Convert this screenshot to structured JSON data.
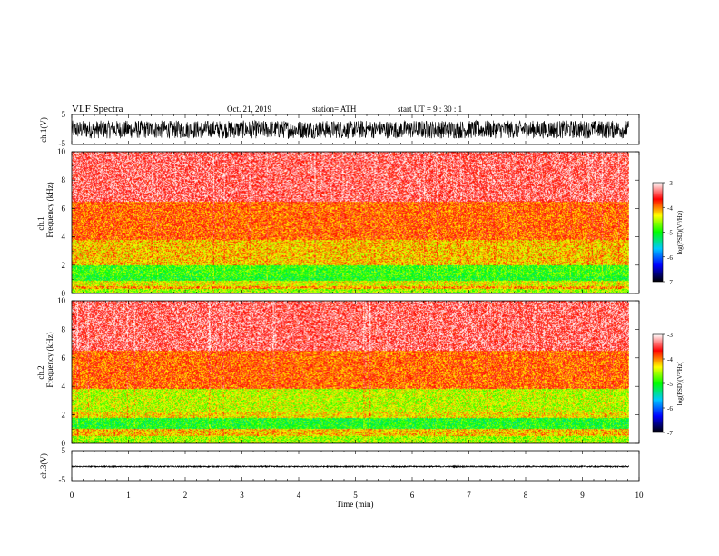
{
  "header": {
    "title": "VLF  Spectra",
    "date": "Oct. 21, 2019",
    "station": "station= ATH",
    "start": "start  UT  =    9  : 30 : 1"
  },
  "chart_data": [
    {
      "type": "line",
      "panel": "ch1-waveform",
      "ylabel": "ch.1(V)",
      "ylim": [
        -5,
        5
      ],
      "yticks": [
        "5",
        "-5"
      ],
      "description_values": {
        "amplitude_min": -3.0,
        "amplitude_max": 3.0
      }
    },
    {
      "type": "heatmap",
      "panel": "ch1-spectrogram",
      "ylabel": "Frequency  (kHz)",
      "channel_label": "ch.1",
      "ylim": [
        0,
        10
      ],
      "yticks": [
        "0",
        "2",
        "4",
        "6",
        "8",
        "10"
      ],
      "bands": [
        {
          "from": 0.0,
          "to": 0.3,
          "level": -4.6
        },
        {
          "from": 0.3,
          "to": 0.5,
          "level": -4.1
        },
        {
          "from": 0.5,
          "to": 0.9,
          "level": -4.4
        },
        {
          "from": 0.9,
          "to": 1.2,
          "level": -5.0
        },
        {
          "from": 1.2,
          "to": 2.0,
          "level": -4.9
        },
        {
          "from": 2.0,
          "to": 3.8,
          "level": -4.2
        },
        {
          "from": 3.8,
          "to": 6.5,
          "level": -3.9
        },
        {
          "from": 6.5,
          "to": 10.0,
          "level": -3.4
        }
      ],
      "colorbar": {
        "label": "log(PSD)(V²/Hz)",
        "range": [
          -7,
          -3
        ],
        "ticks": [
          "-3",
          "-4",
          "-5",
          "-6",
          "-7"
        ],
        "colors": [
          "#000000",
          "#0000ff",
          "#00c8ff",
          "#00ff00",
          "#ffff00",
          "#ff0000",
          "#ffffff"
        ]
      }
    },
    {
      "type": "heatmap",
      "panel": "ch2-spectrogram",
      "ylabel": "Frequency  (kHz)",
      "channel_label": "ch.2",
      "ylim": [
        0,
        10
      ],
      "yticks": [
        "0",
        "2",
        "4",
        "6",
        "8",
        "10"
      ],
      "bands": [
        {
          "from": 0.0,
          "to": 0.5,
          "level": -4.6
        },
        {
          "from": 0.5,
          "to": 1.0,
          "level": -4.2
        },
        {
          "from": 1.0,
          "to": 1.8,
          "level": -5.0
        },
        {
          "from": 1.8,
          "to": 2.2,
          "level": -4.3
        },
        {
          "from": 2.2,
          "to": 3.8,
          "level": -4.5
        },
        {
          "from": 3.8,
          "to": 6.5,
          "level": -3.9
        },
        {
          "from": 6.5,
          "to": 10.0,
          "level": -3.4
        }
      ],
      "colorbar": {
        "label": "log(PSD)(V²/Hz)",
        "range": [
          -7,
          -3
        ],
        "ticks": [
          "-3",
          "-4",
          "-5",
          "-6",
          "-7"
        ],
        "colors": [
          "#000000",
          "#0000ff",
          "#00c8ff",
          "#00ff00",
          "#ffff00",
          "#ff0000",
          "#ffffff"
        ]
      }
    },
    {
      "type": "line",
      "panel": "ch3-waveform",
      "ylabel": "ch.3(V)",
      "ylim": [
        -5,
        5
      ],
      "yticks": [
        "5",
        "-5"
      ],
      "description_values": {
        "amplitude_min": -0.5,
        "amplitude_max": -0.1
      }
    }
  ],
  "xaxis": {
    "label": "Time  (min)",
    "range": [
      0,
      10
    ],
    "ticks": [
      "0",
      "1",
      "2",
      "3",
      "4",
      "5",
      "6",
      "7",
      "8",
      "9",
      "10"
    ],
    "data_end": 9.82
  }
}
